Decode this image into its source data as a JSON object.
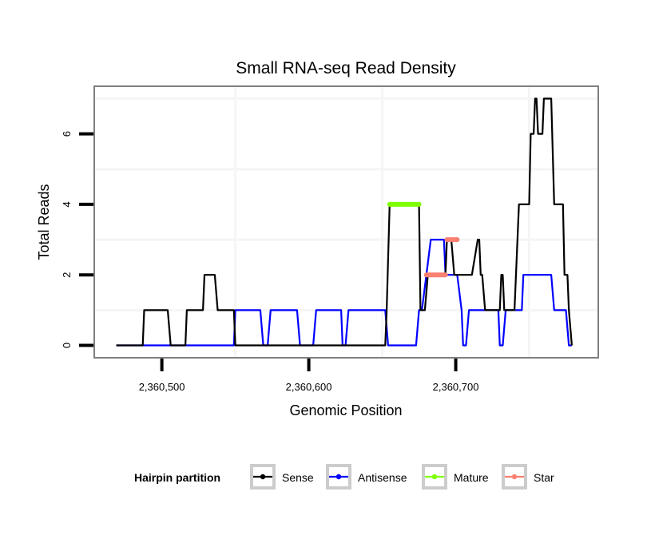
{
  "chart_data": {
    "type": "line",
    "title": "Small RNA-seq Read Density",
    "xlabel": "Genomic Position",
    "ylabel": "Total Reads",
    "xlim": [
      2360454,
      2360797
    ],
    "ylim": [
      -0.35,
      7.35
    ],
    "x_ticks": [
      {
        "value": 2360500,
        "label": "2,360,500"
      },
      {
        "value": 2360600,
        "label": "2,360,600"
      },
      {
        "value": 2360700,
        "label": "2,360,700"
      }
    ],
    "y_ticks": [
      {
        "value": 0,
        "label": "0"
      },
      {
        "value": 2,
        "label": "2"
      },
      {
        "value": 4,
        "label": "4"
      },
      {
        "value": 6,
        "label": "6"
      }
    ],
    "grid": true,
    "legend": {
      "title": "Hairpin partition",
      "placement": "bottom",
      "entries": [
        {
          "name": "Sense",
          "color": "#000000"
        },
        {
          "name": "Antisense",
          "color": "#0000ff"
        },
        {
          "name": "Mature",
          "color": "#7fff00"
        },
        {
          "name": "Star",
          "color": "#fa8072"
        }
      ]
    },
    "series": [
      {
        "name": "Sense",
        "color": "#000000",
        "x": [
          2360469,
          2360487,
          2360488,
          2360504,
          2360506,
          2360516,
          2360517,
          2360528,
          2360529,
          2360536,
          2360538,
          2360549,
          2360550,
          2360652,
          2360653,
          2360655,
          2360675,
          2360676,
          2360679,
          2360681,
          2360693,
          2360694,
          2360696,
          2360697,
          2360699,
          2360700,
          2360710,
          2360711,
          2360715,
          2360716,
          2360717,
          2360718,
          2360720,
          2360730,
          2360731,
          2360732,
          2360733,
          2360740,
          2360743,
          2360745,
          2360750,
          2360751,
          2360753,
          2360754,
          2360755,
          2360756,
          2360759,
          2360760,
          2360764,
          2360765,
          2360767,
          2360768,
          2360773,
          2360774,
          2360776,
          2360777,
          2360779
        ],
        "values": [
          0,
          0,
          1,
          1,
          0,
          0,
          1,
          1,
          2,
          2,
          1,
          1,
          0,
          0,
          1,
          4,
          4,
          1,
          1,
          2,
          2,
          3,
          3,
          3,
          2,
          2,
          2,
          2,
          3,
          3,
          2,
          2,
          1,
          1,
          2,
          2,
          1,
          1,
          4,
          4,
          4,
          6,
          6,
          7,
          7,
          6,
          6,
          7,
          7,
          7,
          4,
          4,
          4,
          2,
          2,
          1,
          0
        ]
      },
      {
        "name": "Antisense",
        "color": "#0000ff",
        "x": [
          2360469,
          2360549,
          2360550,
          2360567,
          2360569,
          2360572,
          2360574,
          2360592,
          2360594,
          2360603,
          2360605,
          2360622,
          2360623,
          2360625,
          2360627,
          2360646,
          2360648,
          2360652,
          2360654,
          2360673,
          2360675,
          2360677,
          2360680,
          2360683,
          2360692,
          2360693,
          2360701,
          2360704,
          2360705,
          2360707,
          2360709,
          2360729,
          2360730,
          2360732,
          2360734,
          2360745,
          2360746,
          2360765,
          2360767,
          2360775,
          2360777,
          2360779
        ],
        "values": [
          0,
          0,
          1,
          1,
          0,
          0,
          1,
          1,
          0,
          0,
          1,
          1,
          0,
          0,
          1,
          1,
          1,
          1,
          0,
          0,
          1,
          1,
          2,
          3,
          3,
          2,
          2,
          1,
          0,
          0,
          1,
          1,
          0,
          0,
          1,
          1,
          2,
          2,
          1,
          1,
          0,
          0
        ]
      },
      {
        "name": "Mature",
        "color": "#7fff00",
        "x": [
          2360655,
          2360675
        ],
        "values": [
          4,
          4
        ]
      },
      {
        "name": "Star",
        "color": "#fa8072",
        "segments": [
          {
            "x": [
              2360680,
              2360693
            ],
            "values": [
              2,
              2
            ]
          },
          {
            "x": [
              2360694,
              2360701
            ],
            "values": [
              3,
              3
            ]
          }
        ]
      }
    ]
  }
}
